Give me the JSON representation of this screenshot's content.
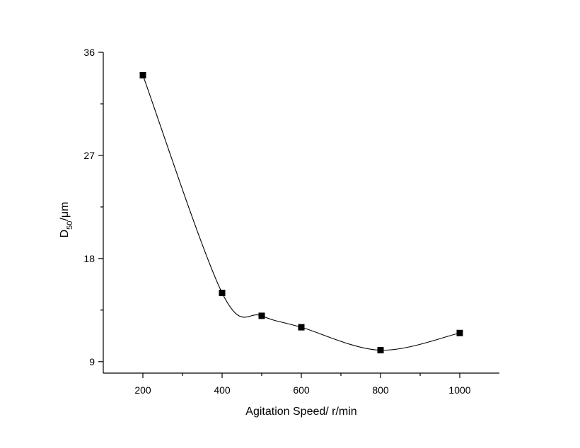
{
  "chart_data": {
    "type": "line",
    "title": "",
    "xlabel": "Agitation Speed/ r/min",
    "ylabel": {
      "main": "D",
      "sub": "50",
      "unit": "/μm"
    },
    "xlim": [
      100,
      1100
    ],
    "ylim": [
      8,
      36
    ],
    "x_ticks": [
      200,
      400,
      600,
      800,
      1000
    ],
    "x_minor_ticks": [
      300,
      500,
      700,
      900
    ],
    "y_ticks": [
      9,
      18,
      27,
      36
    ],
    "y_minor_ticks": [
      13.5,
      22.5,
      31.5
    ],
    "grid": false,
    "series": [
      {
        "marker": "square",
        "line": "smooth",
        "x": [
          200,
          400,
          500,
          600,
          800,
          1000
        ],
        "y": [
          34.0,
          15.0,
          13.0,
          12.0,
          10.0,
          11.5
        ]
      }
    ]
  }
}
